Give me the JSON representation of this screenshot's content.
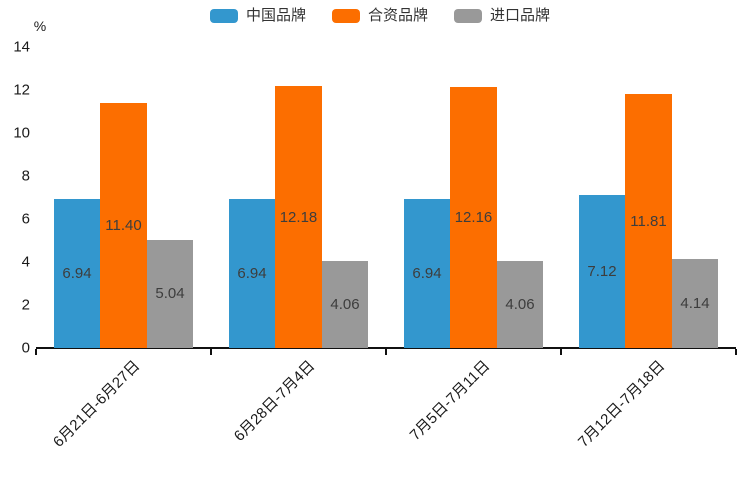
{
  "chart_data": {
    "type": "bar",
    "title": "",
    "ylabel": "%",
    "xlabel": "",
    "ylim": [
      0,
      14
    ],
    "yticks": [
      0,
      2,
      4,
      6,
      8,
      10,
      12,
      14
    ],
    "grid": false,
    "legend_position": "top",
    "value_labels": true,
    "value_labels_decimals": 2,
    "categories": [
      "6月21日-6月27日",
      "6月28日-7月4日",
      "7月5日-7月11日",
      "7月12日-7月18日"
    ],
    "series": [
      {
        "id": "china-brand",
        "name": "中国品牌",
        "color": "#3397CE",
        "values": [
          6.94,
          6.94,
          6.94,
          7.12
        ]
      },
      {
        "id": "joint-venture-brand",
        "name": "合资品牌",
        "color": "#FC6E00",
        "values": [
          11.4,
          12.18,
          12.16,
          11.81
        ]
      },
      {
        "id": "import-brand",
        "name": "进口品牌",
        "color": "#999999",
        "values": [
          5.04,
          4.06,
          4.06,
          4.14
        ]
      }
    ],
    "colors": {
      "axis": "#111111",
      "tick_text": "#1a1a1a",
      "value_text": "#3d3d3d",
      "background": "#ffffff"
    }
  }
}
